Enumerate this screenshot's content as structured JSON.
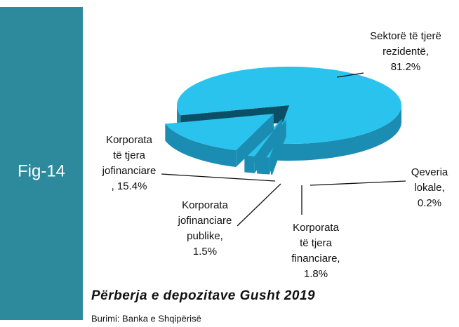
{
  "chart_data": {
    "type": "pie3d",
    "panel_label": "Fig-14",
    "title": "Përberja e depozitave Gusht 2019",
    "source": "Burimi: Banka e Shqipërisë",
    "categories": [
      "Sektorë të tjerë rezidentë,",
      "Qeveria lokale,",
      "Korporata të tjera financiare,",
      "Korporata jofinanciare publike,",
      "Korporata të tjera jofinanciare ,"
    ],
    "values": [
      81.2,
      0.2,
      1.8,
      1.5,
      15.4
    ],
    "value_labels": [
      "81.2%",
      "0.2%",
      "1.8%",
      "1.5%",
      "15.4%"
    ],
    "color": "#29c3ee",
    "side_color": "#1b8db3",
    "wall_color": "#0b4f66"
  }
}
